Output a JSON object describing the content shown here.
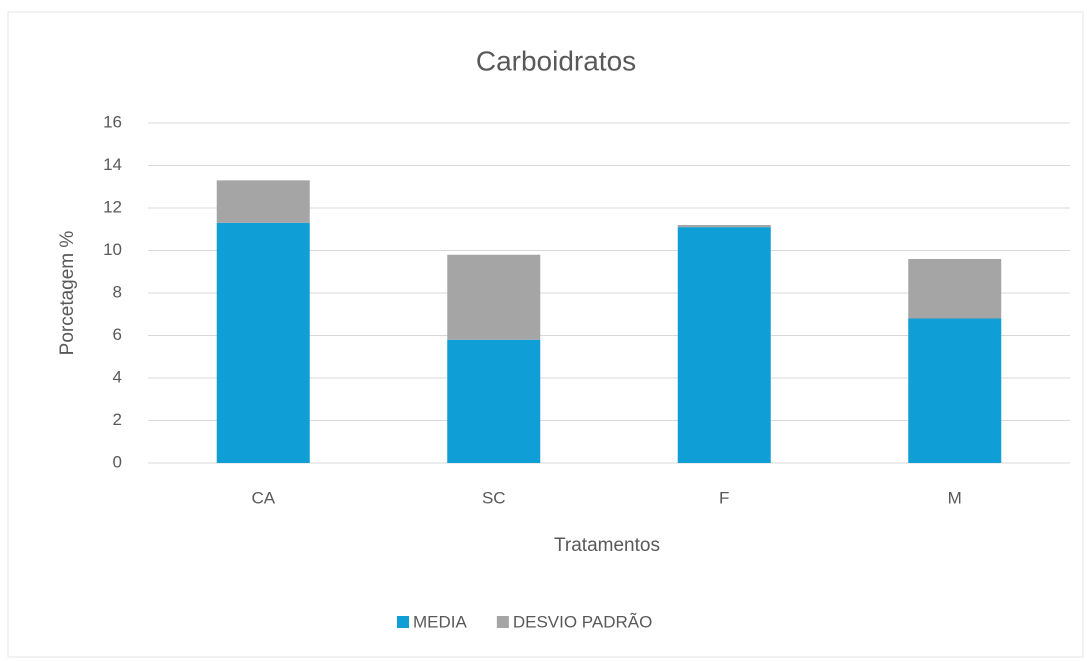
{
  "chart_data": {
    "type": "bar",
    "stacked": true,
    "title": "Carboidratos",
    "x_label": "Tratamentos",
    "y_label": "Porcetagem %",
    "categories": [
      "CA",
      "SC",
      "F",
      "M"
    ],
    "series": [
      {
        "name": "MEDIA",
        "color": "#0f9ed5",
        "values": [
          11.3,
          5.8,
          11.1,
          6.8
        ]
      },
      {
        "name": "DESVIO PADRÃO",
        "color": "#a5a5a5",
        "values": [
          2.0,
          4.0,
          0.1,
          2.8
        ]
      }
    ],
    "ylim": [
      0,
      16
    ],
    "yticks": [
      0,
      2,
      4,
      6,
      8,
      10,
      12,
      14,
      16
    ],
    "grid": true,
    "legend": "bottom"
  }
}
